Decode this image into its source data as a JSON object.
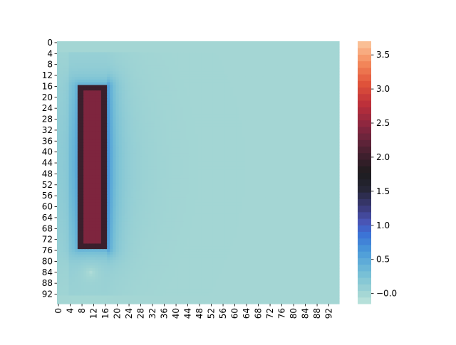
{
  "chart_data": {
    "type": "heatmap",
    "title": "",
    "xlabel": "",
    "ylabel": "",
    "grid": false,
    "legend": "colorbar-right",
    "rows": 96,
    "cols": 96,
    "x_tick_labels": [
      "0",
      "4",
      "8",
      "12",
      "16",
      "20",
      "24",
      "28",
      "32",
      "36",
      "40",
      "44",
      "48",
      "52",
      "56",
      "60",
      "64",
      "68",
      "72",
      "76",
      "80",
      "84",
      "88",
      "92"
    ],
    "y_tick_labels": [
      "0",
      "4",
      "8",
      "12",
      "16",
      "20",
      "24",
      "28",
      "32",
      "36",
      "40",
      "44",
      "48",
      "52",
      "56",
      "60",
      "64",
      "68",
      "72",
      "76",
      "80",
      "84",
      "88",
      "92"
    ],
    "x_tick_rotation": 90,
    "background_value": 0.0,
    "description_of_field": {
      "bar": {
        "row_start": 16,
        "row_end": 75,
        "col_start": 7,
        "col_end": 16,
        "value": 2.4,
        "edge_value": 2.0
      },
      "halo_near": {
        "value": 0.7,
        "extent_cols": 19
      },
      "halo_far": {
        "value": 0.25,
        "extent_cols": 38,
        "extent_rows_top": 4,
        "extent_rows_bottom": 92
      },
      "low_spot": {
        "row": 84,
        "col": 11,
        "value": -0.12
      }
    },
    "colorbar": {
      "vmin": -0.15,
      "vmax": 3.7,
      "ticks": [
        -0.0,
        0.5,
        1.0,
        1.5,
        2.0,
        2.5,
        3.0,
        3.5
      ],
      "tick_labels": [
        "−0.0",
        "0.5",
        "1.0",
        "1.5",
        "2.0",
        "2.5",
        "3.0",
        "3.5"
      ],
      "colormap": "icefire",
      "color_stops": [
        [
          0.0,
          "#bfe4dc"
        ],
        [
          0.04,
          "#a3d6d4"
        ],
        [
          0.12,
          "#74bed6"
        ],
        [
          0.2,
          "#4a9bd9"
        ],
        [
          0.27,
          "#3a6fd6"
        ],
        [
          0.31,
          "#4a56b8"
        ],
        [
          0.37,
          "#3a3a78"
        ],
        [
          0.44,
          "#252535"
        ],
        [
          0.5,
          "#1e1c1e"
        ],
        [
          0.56,
          "#3c1f2c"
        ],
        [
          0.62,
          "#62243a"
        ],
        [
          0.68,
          "#8a2640"
        ],
        [
          0.76,
          "#bc2f3a"
        ],
        [
          0.84,
          "#e0533a"
        ],
        [
          0.92,
          "#f48a5c"
        ],
        [
          1.0,
          "#fbc9a0"
        ]
      ]
    }
  }
}
